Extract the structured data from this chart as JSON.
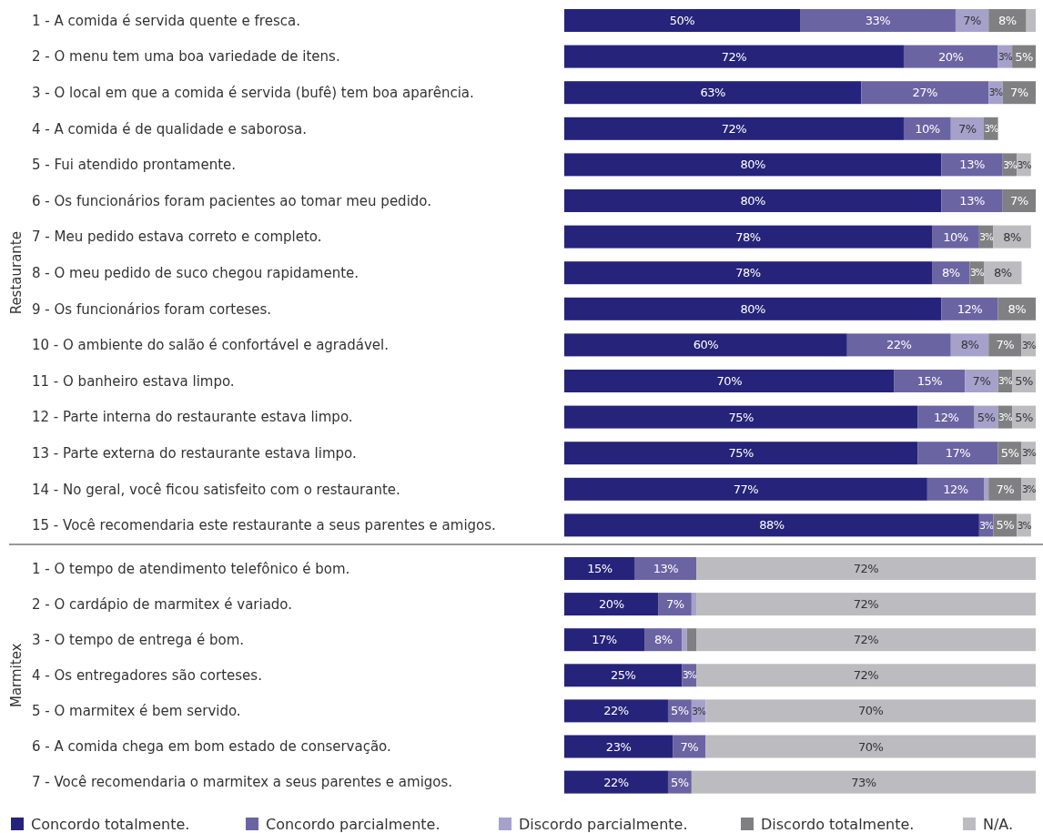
{
  "chart_data": [
    {
      "type": "bar",
      "orientation": "horizontal",
      "stacked": true,
      "ylabel": "Restaurante",
      "xlim": [
        0,
        100
      ],
      "tick_labels": "y",
      "categories": [
        "1 - A comida é servida quente e fresca.",
        "2 - O menu tem uma boa variedade de itens.",
        "3 - O local em que a comida é servida (bufê) tem boa aparência.",
        "4 - A comida é de qualidade e saborosa.",
        "5 - Fui atendido prontamente.",
        "6 - Os funcionários foram pacientes ao tomar meu pedido.",
        "7 - Meu pedido estava correto e completo.",
        "8 - O meu pedido de suco chegou rapidamente.",
        "9 - Os funcionários foram corteses.",
        "10 - O ambiente do salão é confortável e agradável.",
        "11 - O banheiro estava limpo.",
        "12 - Parte interna do restaurante estava limpo.",
        "13 - Parte externa do restaurante estava limpo.",
        "14 - No geral, você ficou satisfeito com o restaurante.",
        "15 - Você recomendaria este restaurante a seus parentes e amigos."
      ],
      "series": [
        {
          "color": "#26237a",
          "values": [
            50,
            72,
            63,
            72,
            80,
            80,
            78,
            78,
            80,
            60,
            70,
            75,
            75,
            77,
            88
          ],
          "value_labels": [
            "50%",
            "72%",
            "63%",
            "72%",
            "80%",
            "80%",
            "78%",
            "78%",
            "80%",
            "60%",
            "70%",
            "75%",
            "75%",
            "77%",
            "88%"
          ]
        },
        {
          "color": "#6a64a3",
          "values": [
            33,
            20,
            27,
            10,
            13,
            13,
            10,
            8,
            12,
            22,
            15,
            12,
            17,
            12,
            3
          ],
          "value_labels": [
            "33%",
            "20%",
            "27%",
            "10%",
            "13%",
            "13%",
            "10%",
            "8%",
            "12%",
            "22%",
            "15%",
            "12%",
            "17%",
            "12%",
            "3%"
          ]
        },
        {
          "color": "#a5a1cb",
          "values": [
            7,
            3,
            3,
            7,
            null,
            null,
            null,
            null,
            null,
            8,
            7,
            5,
            null,
            1,
            null
          ],
          "value_labels": [
            "7%",
            "3%",
            "3%",
            "7%",
            null,
            null,
            null,
            null,
            null,
            "8%",
            "7%",
            "5%",
            null,
            null,
            null
          ]
        },
        {
          "color": "#808083",
          "values": [
            8,
            5,
            7,
            3,
            3,
            7,
            3,
            3,
            8,
            7,
            3,
            3,
            5,
            7,
            5
          ],
          "value_labels": [
            "8%",
            "5%",
            "7%",
            "3%",
            "3%",
            "7%",
            "3%",
            "3%",
            "8%",
            "7%",
            "3%",
            "3%",
            "5%",
            "7%",
            "5%"
          ]
        },
        {
          "color": "#bcbcc0",
          "values": [
            2,
            null,
            null,
            null,
            3,
            null,
            8,
            8,
            null,
            3,
            5,
            5,
            3,
            3,
            3
          ],
          "value_labels": [
            null,
            null,
            null,
            null,
            "3%",
            null,
            "8%",
            "8%",
            null,
            "3%",
            "5%",
            "5%",
            "3%",
            "3%",
            "3%"
          ]
        }
      ]
    },
    {
      "type": "bar",
      "orientation": "horizontal",
      "stacked": true,
      "ylabel": "Marmitex",
      "xlim": [
        0,
        100
      ],
      "tick_labels": "y",
      "legend": "bottom",
      "categories": [
        "1 - O tempo de atendimento telefônico é bom.",
        "2 - O cardápio de marmitex é variado.",
        "3 - O tempo de entrega é bom.",
        "4 - Os entregadores são corteses.",
        "5 - O marmitex é bem servido.",
        "6 - A comida chega em bom estado de conservação.",
        "7 - Você recomendaria o marmitex a seus parentes e amigos."
      ],
      "series": [
        {
          "name": "Concordo totalmente.",
          "color": "#26237a",
          "values": [
            15,
            20,
            17,
            25,
            22,
            23,
            22
          ],
          "value_labels": [
            "15%",
            "20%",
            "17%",
            "25%",
            "22%",
            "23%",
            "22%"
          ]
        },
        {
          "name": "Concordo parcialmente.",
          "color": "#6a64a3",
          "values": [
            13,
            7,
            8,
            3,
            5,
            7,
            5
          ],
          "value_labels": [
            "13%",
            "7%",
            "8%",
            "3%",
            "5%",
            "7%",
            "5%"
          ]
        },
        {
          "name": "Discordo parcialmente.",
          "color": "#a5a1cb",
          "values": [
            null,
            1,
            1,
            null,
            3,
            null,
            null
          ],
          "value_labels": [
            null,
            null,
            null,
            null,
            "3%",
            null,
            null
          ]
        },
        {
          "name": "Discordo totalmente.",
          "color": "#808083",
          "values": [
            null,
            null,
            2,
            null,
            null,
            null,
            null
          ],
          "value_labels": [
            null,
            null,
            null,
            null,
            null,
            null,
            null
          ]
        },
        {
          "name": "N/A.",
          "color": "#bcbcc0",
          "values": [
            72,
            72,
            72,
            72,
            70,
            70,
            73
          ],
          "value_labels": [
            "72%",
            "72%",
            "72%",
            "72%",
            "70%",
            "70%",
            "73%"
          ]
        }
      ]
    }
  ]
}
